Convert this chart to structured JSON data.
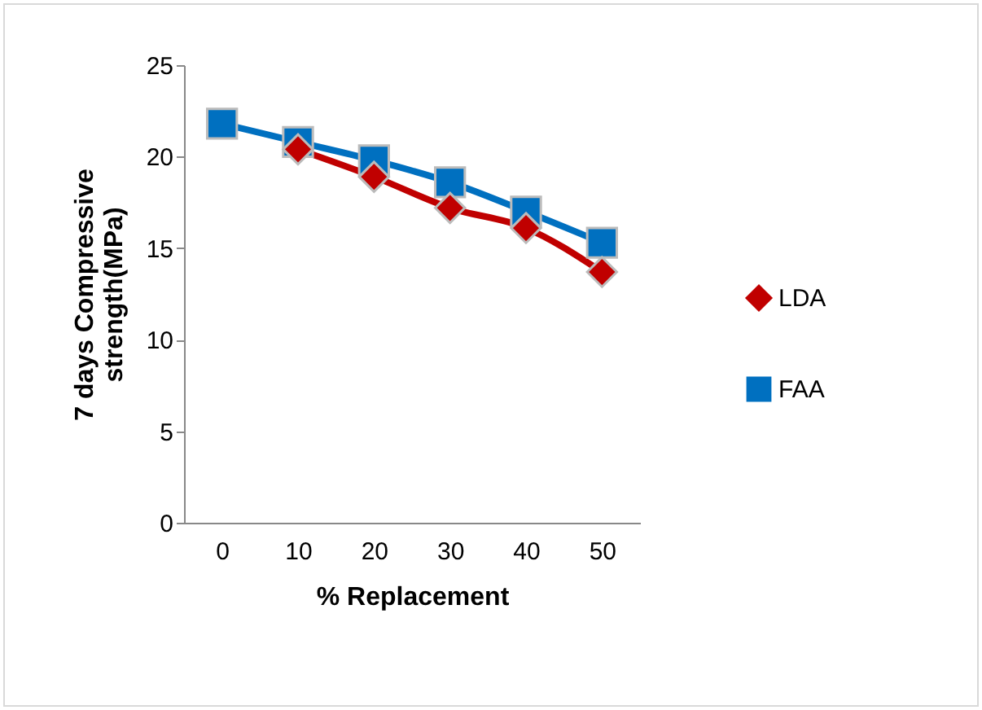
{
  "chart_data": {
    "type": "line",
    "xlabel": "% Replacement",
    "ylabel": "7 days Compressive strength(MPa)",
    "categories": [
      "0",
      "10",
      "20",
      "30",
      "40",
      "50"
    ],
    "series": [
      {
        "name": "LDA",
        "color": "#c00000",
        "marker": "diamond",
        "values": [
          null,
          20.4,
          18.9,
          17.2,
          16.1,
          13.7
        ]
      },
      {
        "name": "FAA",
        "color": "#0070c0",
        "marker": "square",
        "values": [
          21.8,
          20.8,
          19.8,
          18.6,
          17.0,
          15.3
        ]
      }
    ],
    "ylim": [
      0,
      25
    ],
    "yticks": [
      0,
      5,
      10,
      15,
      20,
      25
    ],
    "grid": false,
    "legend": "right"
  }
}
